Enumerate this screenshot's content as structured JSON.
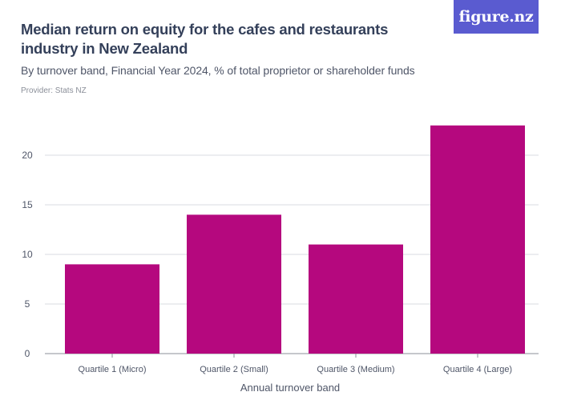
{
  "header": {
    "title": "Median return on equity for the cafes and restaurants industry in New Zealand",
    "subtitle": "By turnover band, Financial Year 2024, % of total proprietor or shareholder funds",
    "provider": "Provider: Stats NZ",
    "logo": "figure.nz"
  },
  "colors": {
    "bar": "#b5087e",
    "grid": "#d9dbe0",
    "logo_bg": "#5a5bd0"
  },
  "chart_data": {
    "type": "bar",
    "categories": [
      "Quartile 1 (Micro)",
      "Quartile 2 (Small)",
      "Quartile 3 (Medium)",
      "Quartile 4 (Large)"
    ],
    "values": [
      9,
      14,
      11,
      23
    ],
    "xlabel": "Annual turnover band",
    "ylabel": "",
    "ylim": [
      0,
      25
    ],
    "yticks": [
      0,
      5,
      10,
      15,
      20
    ],
    "grid": true,
    "legend": "none"
  }
}
